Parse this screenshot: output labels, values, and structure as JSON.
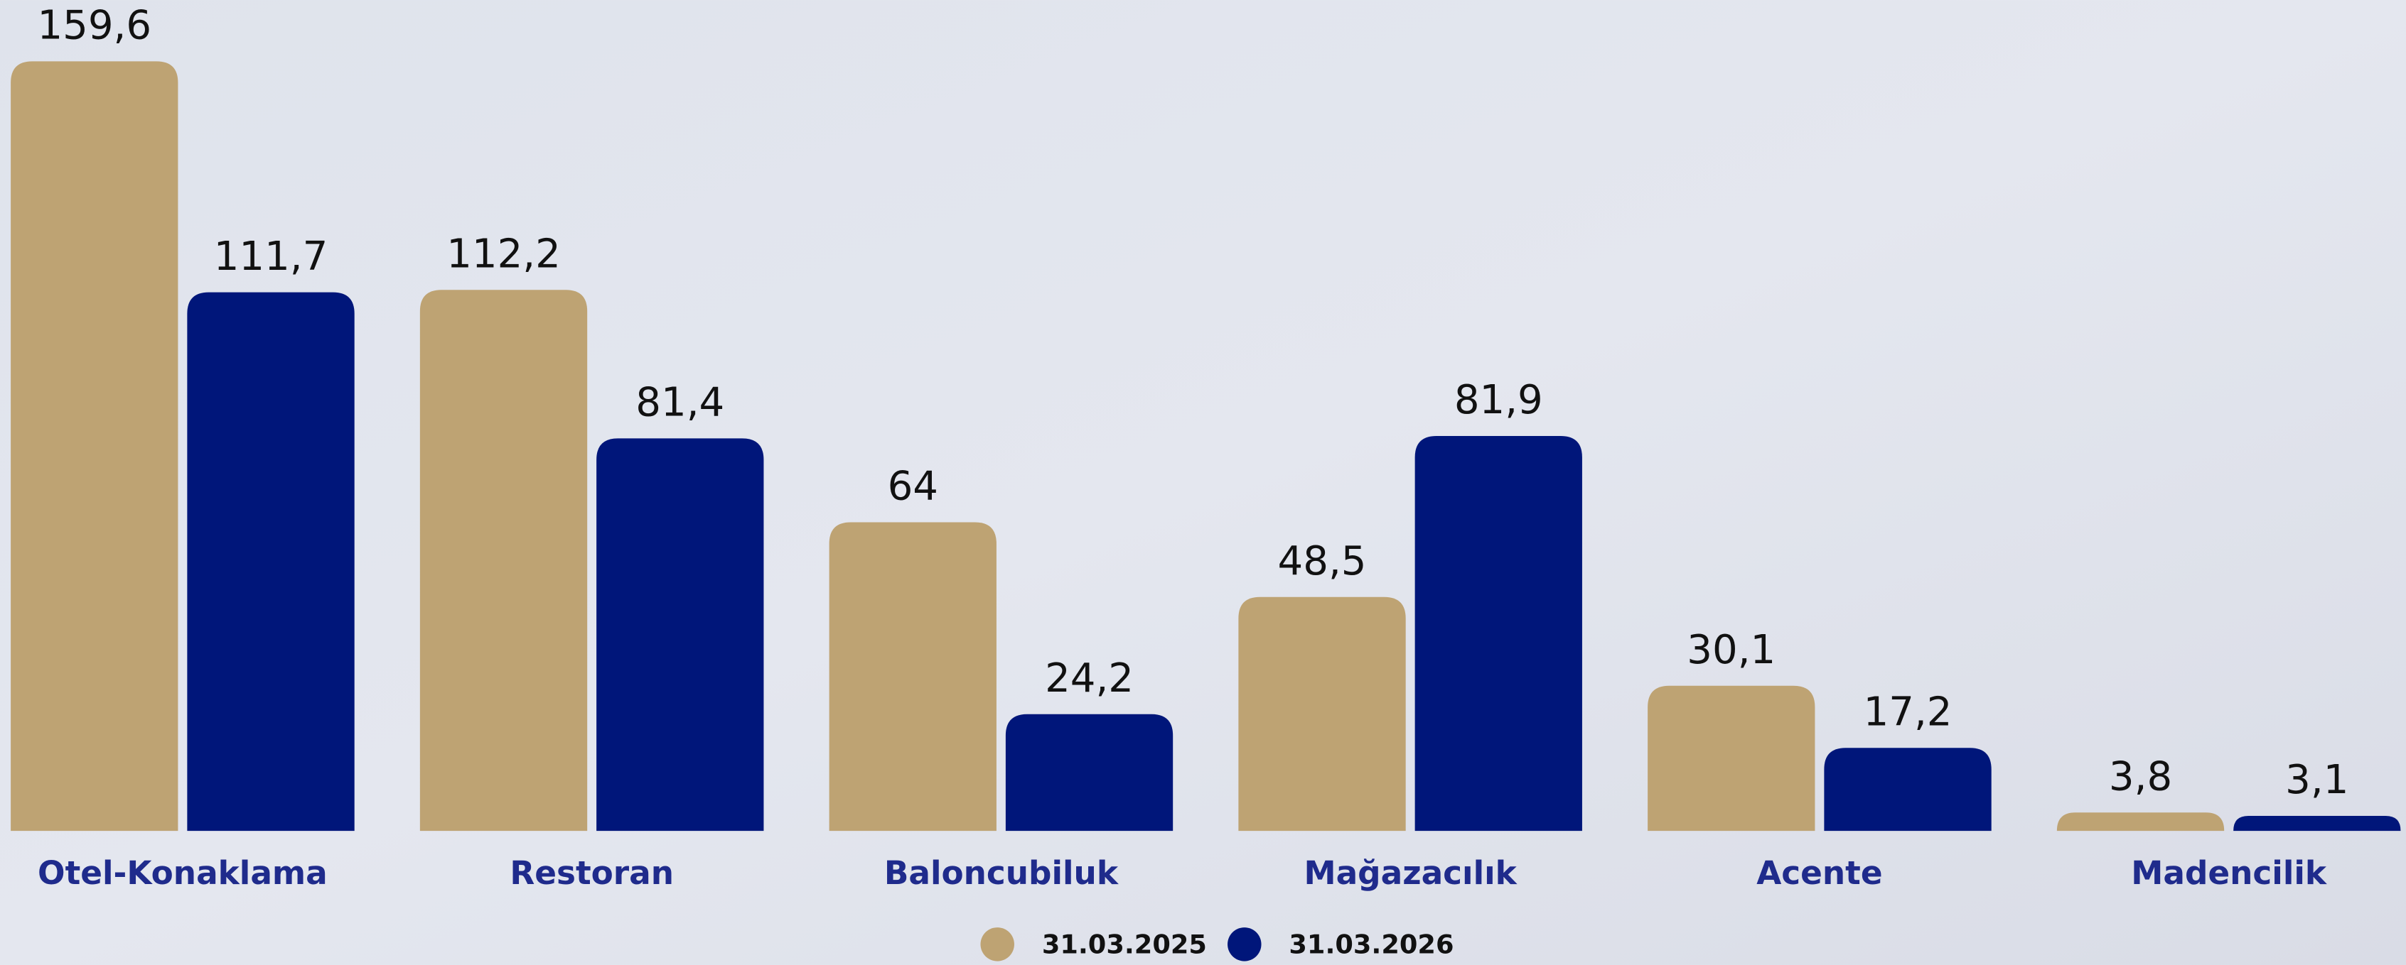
{
  "chart_data": {
    "type": "bar",
    "categories": [
      "Otel-Konaklama",
      "Restoran",
      "Baloncubiluk",
      "Mağazacılık",
      "Acente",
      "Madencilik"
    ],
    "series": [
      {
        "name": "31.03.2025",
        "color": "#bea373",
        "values": [
          159.6,
          112.2,
          64,
          48.5,
          30.1,
          3.8
        ],
        "value_labels": [
          "159,6",
          "112,2",
          "64",
          "48,5",
          "30,1",
          "3,8"
        ]
      },
      {
        "name": "31.03.2026",
        "color": "#00167a",
        "values": [
          111.7,
          81.4,
          24.2,
          81.9,
          17.2,
          3.1
        ],
        "value_labels": [
          "111,7",
          "81,4",
          "24,2",
          "81,9",
          "17,2",
          "3,1"
        ]
      }
    ],
    "legend": "bottom"
  }
}
